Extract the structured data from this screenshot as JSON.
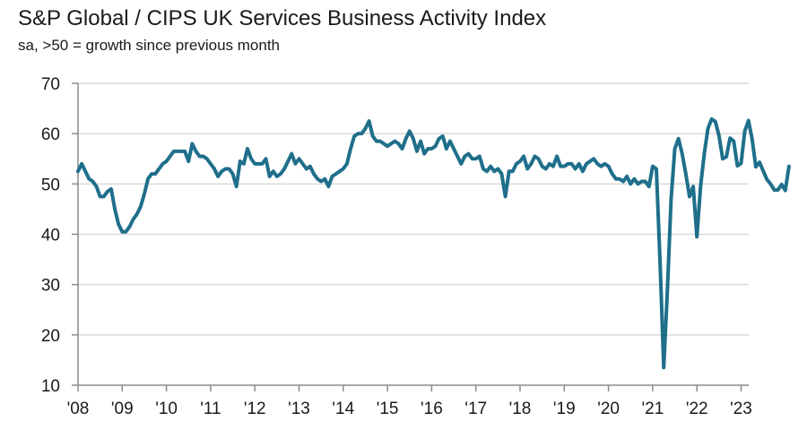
{
  "chart_data": {
    "type": "line",
    "title": "S&P Global / CIPS UK Services Business Activity Index",
    "subtitle": "sa, >50 = growth since previous month",
    "xlabel": "",
    "ylabel": "",
    "ylim": [
      10,
      70
    ],
    "yticks": [
      10,
      20,
      30,
      40,
      50,
      60,
      70
    ],
    "ytick_labels": [
      "10",
      "20",
      "30",
      "40",
      "50",
      "60",
      "70"
    ],
    "xticks": [
      "'08",
      "'09",
      "'10",
      "'11",
      "'12",
      "'13",
      "'14",
      "'15",
      "'16",
      "'17",
      "'18",
      "'19",
      "'20",
      "'21",
      "'22",
      "'23"
    ],
    "x_start": "2008-01",
    "x_end": "2023-02",
    "grid": "horizontal",
    "legend": "none",
    "line_color": "#1f6f8b",
    "series": [
      {
        "name": "UK Services Business Activity Index",
        "frequency": "monthly",
        "start": "2008-01",
        "values": [
          52.5,
          54.0,
          52.5,
          51.0,
          50.5,
          49.5,
          47.5,
          47.5,
          48.5,
          49.0,
          45.0,
          42.0,
          40.5,
          40.5,
          41.5,
          43.0,
          44.0,
          45.5,
          48.0,
          51.0,
          52.0,
          52.0,
          53.0,
          54.0,
          54.5,
          55.5,
          56.5,
          56.5,
          56.5,
          56.5,
          54.5,
          58.0,
          56.5,
          55.5,
          55.5,
          55.0,
          54.0,
          53.0,
          51.5,
          52.5,
          53.0,
          53.0,
          52.0,
          49.5,
          54.5,
          54.0,
          57.0,
          55.0,
          54.0,
          54.0,
          54.0,
          55.0,
          51.5,
          52.5,
          51.5,
          52.0,
          53.0,
          54.5,
          56.0,
          54.0,
          55.0,
          54.0,
          53.0,
          53.5,
          52.0,
          51.0,
          50.5,
          51.0,
          49.5,
          51.5,
          52.0,
          52.5,
          53.0,
          54.0,
          57.0,
          59.5,
          60.0,
          60.0,
          61.0,
          62.5,
          59.5,
          58.5,
          58.5,
          58.0,
          57.5,
          58.0,
          58.5,
          58.0,
          57.0,
          59.0,
          60.5,
          59.0,
          56.5,
          58.5,
          56.0,
          57.0,
          57.0,
          57.5,
          59.0,
          59.5,
          57.0,
          58.5,
          57.0,
          55.5,
          54.0,
          55.5,
          56.0,
          55.0,
          55.0,
          55.5,
          53.0,
          52.5,
          53.5,
          52.5,
          53.0,
          52.0,
          47.5,
          52.5,
          52.5,
          54.0,
          54.5,
          55.5,
          53.0,
          54.0,
          55.5,
          55.0,
          53.5,
          53.0,
          54.0,
          53.5,
          55.5,
          53.5,
          53.5,
          54.0,
          54.0,
          53.0,
          54.0,
          52.5,
          54.0,
          54.5,
          55.0,
          54.0,
          53.5,
          54.0,
          53.5,
          52.0,
          51.0,
          51.0,
          50.5,
          51.5,
          50.0,
          51.0,
          50.0,
          50.5,
          50.5,
          49.5,
          53.5,
          53.0,
          34.5,
          13.5,
          29.0,
          47.0,
          57.0,
          59.0,
          56.0,
          52.0,
          47.5,
          49.5,
          39.5,
          49.5,
          56.0,
          61.0,
          62.9,
          62.4,
          59.6,
          55.0,
          55.4,
          59.1,
          58.5,
          53.6,
          54.1,
          60.5,
          62.6,
          58.9,
          53.4,
          54.3,
          52.6,
          50.9,
          50.0,
          48.8,
          48.8,
          49.9,
          48.7,
          53.5
        ]
      }
    ]
  }
}
